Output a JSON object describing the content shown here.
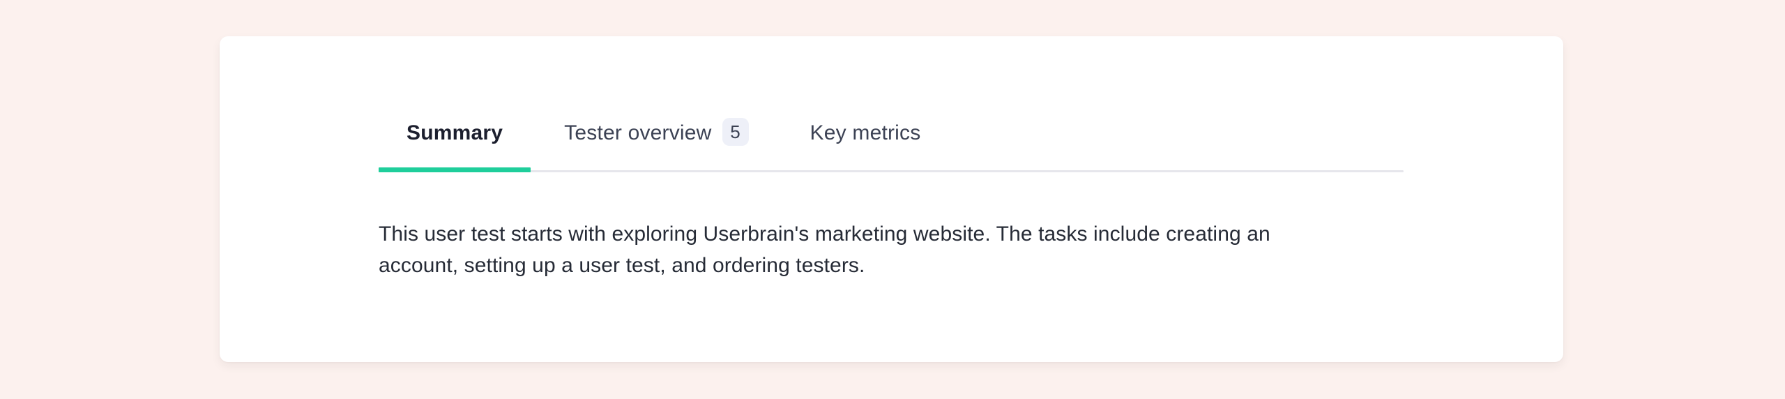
{
  "theme": {
    "page_background": "#FCF1EE",
    "card_background": "#FFFFFF",
    "accent_green": "#1FCE9B",
    "divider": "#E6E6EC",
    "badge_background": "#EEF0F8",
    "active_tab_text": "#1C1F2E",
    "inactive_tab_text": "#3C4254",
    "body_text": "#262B36"
  },
  "card": {
    "tabs": [
      {
        "label": "Summary",
        "active": true
      },
      {
        "label": "Tester overview",
        "badge": "5",
        "active": false
      },
      {
        "label": "Key metrics",
        "active": false
      }
    ],
    "summary_text": "This user test starts with exploring Userbrain's marketing website. The tasks include creating an\naccount, setting up a user test, and ordering testers."
  }
}
